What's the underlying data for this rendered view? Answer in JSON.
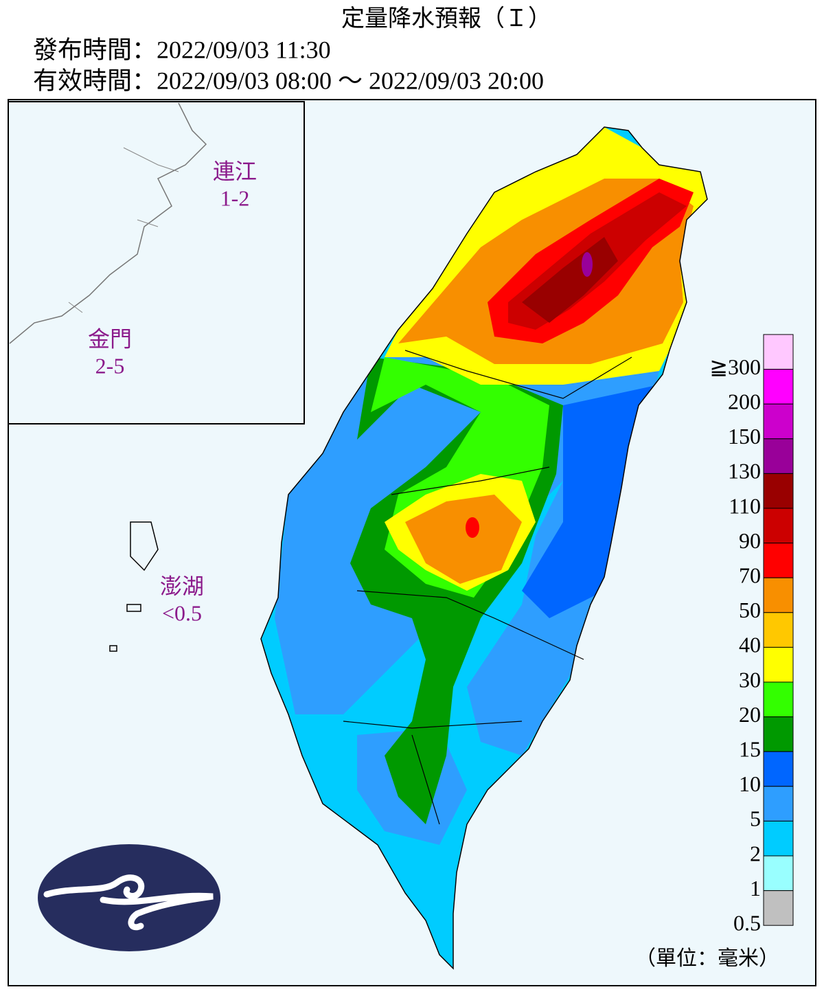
{
  "header": {
    "title": "定量降水預報（Ｉ）",
    "issue_time": "發布時間：2022/09/03 11:30",
    "valid_time": "有效時間：2022/09/03 08:00 ～ 2022/09/03 20:00"
  },
  "regions": [
    {
      "name": "連江",
      "value": "1-2"
    },
    {
      "name": "金門",
      "value": "2-5"
    },
    {
      "name": "澎湖",
      "value": "<0.5"
    }
  ],
  "legend": {
    "entries": [
      {
        "label": "≧300",
        "color": "#ffc8ff"
      },
      {
        "label": "200",
        "color": "#ff00ff"
      },
      {
        "label": "150",
        "color": "#cc00cc"
      },
      {
        "label": "130",
        "color": "#990099"
      },
      {
        "label": "110",
        "color": "#990000"
      },
      {
        "label": "90",
        "color": "#cc0000"
      },
      {
        "label": "70",
        "color": "#ff0000"
      },
      {
        "label": "50",
        "color": "#f88f00"
      },
      {
        "label": "40",
        "color": "#ffc800"
      },
      {
        "label": "30",
        "color": "#ffff00"
      },
      {
        "label": "20",
        "color": "#33ff00"
      },
      {
        "label": "15",
        "color": "#009900"
      },
      {
        "label": "10",
        "color": "#0066ff"
      },
      {
        "label": "5",
        "color": "#2e9eff"
      },
      {
        "label": "2",
        "color": "#00ccff"
      },
      {
        "label": "1",
        "color": "#99ffff"
      },
      {
        "label": "0.5",
        "color": "#c0c0c0"
      }
    ],
    "unit": "（單位：毫米）"
  }
}
